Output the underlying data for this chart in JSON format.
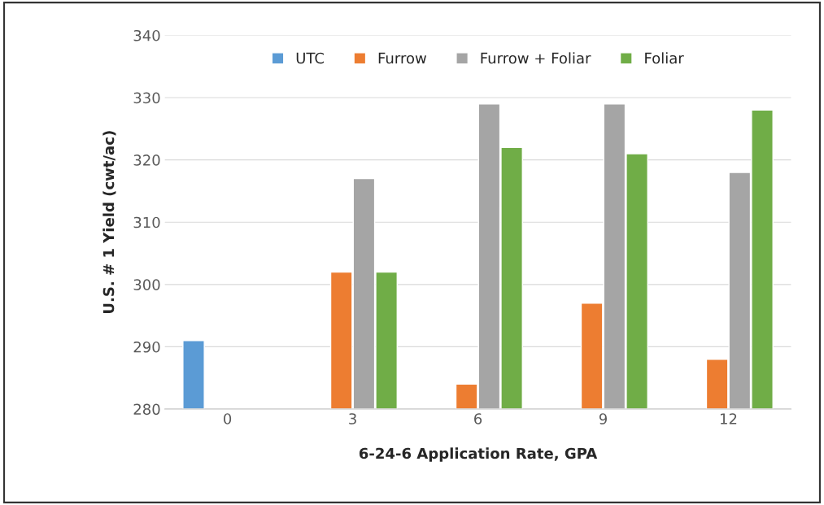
{
  "chart_data": {
    "type": "bar",
    "xlabel": "6-24-6 Application Rate, GPA",
    "ylabel": "U.S. # 1 Yield (cwt/ac)",
    "categories": [
      "0",
      "3",
      "6",
      "9",
      "12"
    ],
    "series": [
      {
        "name": "UTC",
        "color": "#5b9bd5",
        "values": [
          291,
          null,
          null,
          null,
          null
        ]
      },
      {
        "name": "Furrow",
        "color": "#ed7d31",
        "values": [
          null,
          302,
          284,
          297,
          288
        ]
      },
      {
        "name": "Furrow + Foliar",
        "color": "#a5a5a5",
        "values": [
          null,
          317,
          329,
          329,
          318
        ]
      },
      {
        "name": "Foliar",
        "color": "#70ad47",
        "values": [
          null,
          302,
          322,
          321,
          328
        ]
      }
    ],
    "ylim": [
      280,
      340
    ],
    "yticks": [
      280,
      290,
      300,
      310,
      320,
      330,
      340
    ],
    "grid": "y",
    "legend": "top"
  }
}
